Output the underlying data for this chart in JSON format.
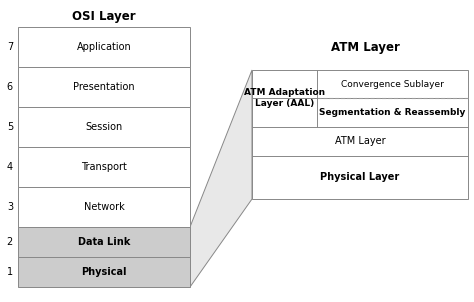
{
  "title_osi": "OSI Layer",
  "title_atm": "ATM Layer",
  "osi_layers": [
    "Application",
    "Presentation",
    "Session",
    "Transport",
    "Network",
    "Data Link",
    "Physical"
  ],
  "osi_numbers": [
    "7",
    "6",
    "5",
    "4",
    "3",
    "2",
    "1"
  ],
  "osi_bold": [
    false,
    false,
    false,
    false,
    false,
    true,
    true
  ],
  "osi_shaded": [
    false,
    false,
    false,
    false,
    false,
    true,
    true
  ],
  "atm_layers": [
    "Convergence Sublayer",
    "Segmentation & Reassembly",
    "ATM Layer",
    "Physical Layer"
  ],
  "atm_bold": [
    false,
    true,
    false,
    true
  ],
  "aal_label": "ATM Adaptation\nLayer (AAL)",
  "background_color": "#ffffff",
  "box_edge_color": "#888888",
  "shaded_color": "#cccccc",
  "white_color": "#ffffff",
  "trap_fill": "#e8e8e8",
  "dashed_color": "#999999",
  "title_fontsize": 8.5,
  "label_fontsize": 7,
  "num_fontsize": 7
}
